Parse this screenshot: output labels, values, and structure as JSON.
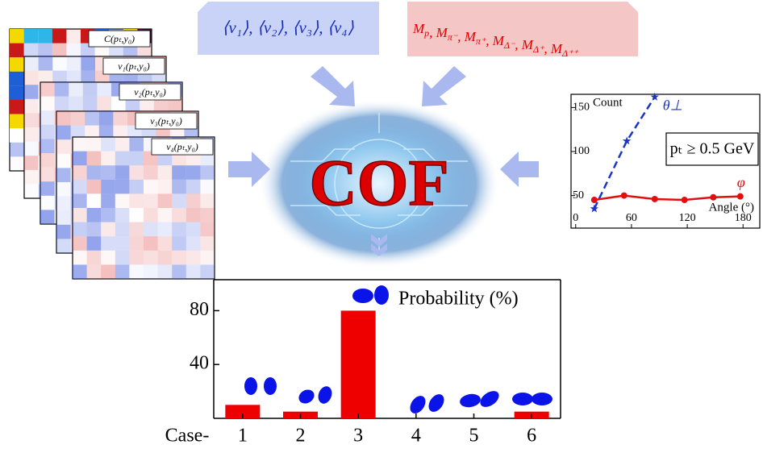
{
  "inputs": {
    "flow": "⟨v₁⟩, ⟨v₂⟩, ⟨v₃⟩, ⟨v₄⟩",
    "masses": {
      "symbol": "M",
      "separator": ", ",
      "subscripts": [
        "p",
        "π⁻",
        "π⁺",
        "Δ⁻",
        "Δ⁺",
        "Δ⁺⁺"
      ]
    }
  },
  "center": {
    "label": "COF"
  },
  "heatmaps": [
    "C(pₜ,y₀)",
    "v₁(pₜ,y₀)",
    "v₂(pₜ,y₀)",
    "v₃(pₜ,y₀)",
    "v₄(pₜ,y₀)"
  ],
  "chart_data": [
    {
      "type": "bar",
      "ylabel": "Probability (%)",
      "xlabel": "Case-",
      "categories": [
        "1",
        "2",
        "3",
        "4",
        "5",
        "6"
      ],
      "values": [
        10,
        5,
        80,
        0,
        0,
        5
      ],
      "color": "#ee0000",
      "ylim": [
        0,
        103
      ],
      "yticks": [
        40,
        80
      ]
    },
    {
      "type": "line",
      "ylabel": "Count",
      "xlabel": "Angle (°)",
      "annotation": "pₜ ≥ 0.5 GeV",
      "xlim": [
        -5,
        198
      ],
      "xticks": [
        0,
        60,
        120,
        180
      ],
      "ylim": [
        13,
        165
      ],
      "yticks": [
        50,
        100,
        150
      ],
      "series": [
        {
          "name": "θ⊥",
          "color": "#1a35c8",
          "marker": "star",
          "dashed": true,
          "x": [
            20,
            55,
            85
          ],
          "values": [
            35,
            112,
            162
          ]
        },
        {
          "name": "φ",
          "color": "#e01010",
          "marker": "circle",
          "dashed": false,
          "x": [
            20,
            52,
            85,
            117,
            148,
            177
          ],
          "values": [
            45,
            50,
            46,
            45,
            48,
            49
          ]
        }
      ]
    }
  ]
}
